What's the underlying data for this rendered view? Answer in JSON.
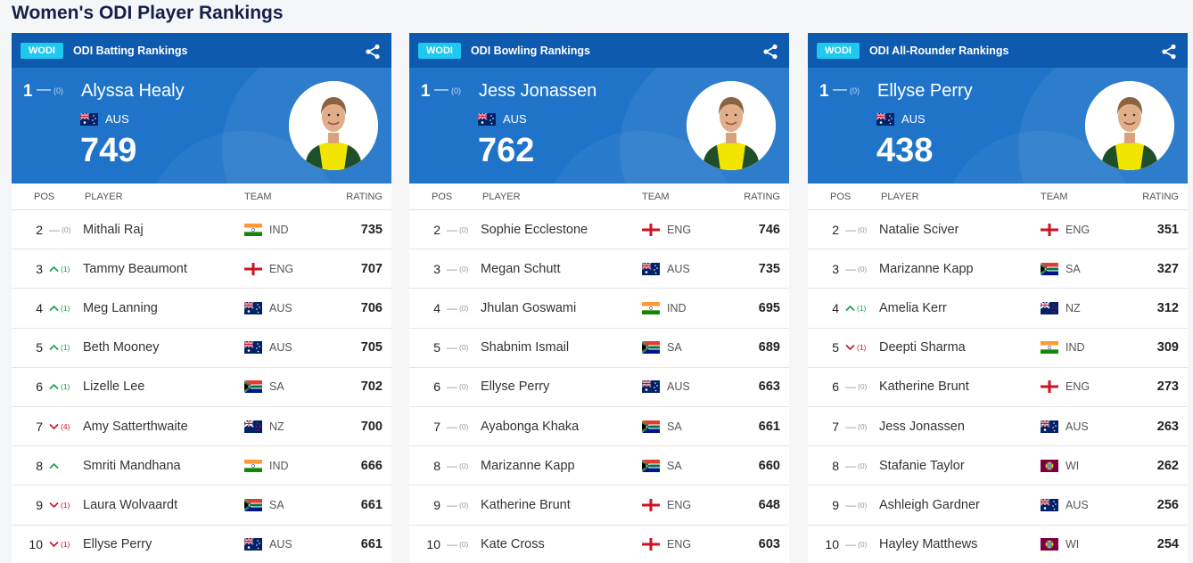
{
  "page_title": "Women's ODI Player Rankings",
  "cards": [
    {
      "badge": "WODI",
      "title": "ODI Batting Rankings",
      "leader": {
        "pos": "1",
        "change_symbol": "—",
        "change_paren": "(0)",
        "name": "Alyssa Healy",
        "team": "AUS",
        "rating": "749"
      },
      "headers": {
        "pos": "POS",
        "player": "PLAYER",
        "team": "TEAM",
        "rating": "RATING"
      },
      "rows": [
        {
          "pos": "2",
          "dir": "same",
          "paren": "(0)",
          "player": "Mithali Raj",
          "team": "IND",
          "rating": "735"
        },
        {
          "pos": "3",
          "dir": "up",
          "paren": "(1)",
          "player": "Tammy Beaumont",
          "team": "ENG",
          "rating": "707"
        },
        {
          "pos": "4",
          "dir": "up",
          "paren": "(1)",
          "player": "Meg Lanning",
          "team": "AUS",
          "rating": "706"
        },
        {
          "pos": "5",
          "dir": "up",
          "paren": "(1)",
          "player": "Beth Mooney",
          "team": "AUS",
          "rating": "705"
        },
        {
          "pos": "6",
          "dir": "up",
          "paren": "(1)",
          "player": "Lizelle Lee",
          "team": "SA",
          "rating": "702"
        },
        {
          "pos": "7",
          "dir": "down",
          "paren": "(4)",
          "player": "Amy Satterthwaite",
          "team": "NZ",
          "rating": "700"
        },
        {
          "pos": "8",
          "dir": "up",
          "paren": "",
          "player": "Smriti Mandhana",
          "team": "IND",
          "rating": "666"
        },
        {
          "pos": "9",
          "dir": "down",
          "paren": "(1)",
          "player": "Laura Wolvaardt",
          "team": "SA",
          "rating": "661"
        },
        {
          "pos": "10",
          "dir": "down",
          "paren": "(1)",
          "player": "Ellyse Perry",
          "team": "AUS",
          "rating": "661"
        }
      ]
    },
    {
      "badge": "WODI",
      "title": "ODI Bowling Rankings",
      "leader": {
        "pos": "1",
        "change_symbol": "—",
        "change_paren": "(0)",
        "name": "Jess Jonassen",
        "team": "AUS",
        "rating": "762"
      },
      "headers": {
        "pos": "POS",
        "player": "PLAYER",
        "team": "TEAM",
        "rating": "RATING"
      },
      "rows": [
        {
          "pos": "2",
          "dir": "same",
          "paren": "(0)",
          "player": "Sophie Ecclestone",
          "team": "ENG",
          "rating": "746"
        },
        {
          "pos": "3",
          "dir": "same",
          "paren": "(0)",
          "player": "Megan Schutt",
          "team": "AUS",
          "rating": "735"
        },
        {
          "pos": "4",
          "dir": "same",
          "paren": "(0)",
          "player": "Jhulan Goswami",
          "team": "IND",
          "rating": "695"
        },
        {
          "pos": "5",
          "dir": "same",
          "paren": "(0)",
          "player": "Shabnim Ismail",
          "team": "SA",
          "rating": "689"
        },
        {
          "pos": "6",
          "dir": "same",
          "paren": "(0)",
          "player": "Ellyse Perry",
          "team": "AUS",
          "rating": "663"
        },
        {
          "pos": "7",
          "dir": "same",
          "paren": "(0)",
          "player": "Ayabonga Khaka",
          "team": "SA",
          "rating": "661"
        },
        {
          "pos": "8",
          "dir": "same",
          "paren": "(0)",
          "player": "Marizanne Kapp",
          "team": "SA",
          "rating": "660"
        },
        {
          "pos": "9",
          "dir": "same",
          "paren": "(0)",
          "player": "Katherine Brunt",
          "team": "ENG",
          "rating": "648"
        },
        {
          "pos": "10",
          "dir": "same",
          "paren": "(0)",
          "player": "Kate Cross",
          "team": "ENG",
          "rating": "603"
        }
      ]
    },
    {
      "badge": "WODI",
      "title": "ODI All-Rounder Rankings",
      "leader": {
        "pos": "1",
        "change_symbol": "—",
        "change_paren": "(0)",
        "name": "Ellyse Perry",
        "team": "AUS",
        "rating": "438"
      },
      "headers": {
        "pos": "POS",
        "player": "PLAYER",
        "team": "TEAM",
        "rating": "RATING"
      },
      "rows": [
        {
          "pos": "2",
          "dir": "same",
          "paren": "(0)",
          "player": "Natalie Sciver",
          "team": "ENG",
          "rating": "351"
        },
        {
          "pos": "3",
          "dir": "same",
          "paren": "(0)",
          "player": "Marizanne Kapp",
          "team": "SA",
          "rating": "327"
        },
        {
          "pos": "4",
          "dir": "up",
          "paren": "(1)",
          "player": "Amelia Kerr",
          "team": "NZ",
          "rating": "312"
        },
        {
          "pos": "5",
          "dir": "down",
          "paren": "(1)",
          "player": "Deepti Sharma",
          "team": "IND",
          "rating": "309"
        },
        {
          "pos": "6",
          "dir": "same",
          "paren": "(0)",
          "player": "Katherine Brunt",
          "team": "ENG",
          "rating": "273"
        },
        {
          "pos": "7",
          "dir": "same",
          "paren": "(0)",
          "player": "Jess Jonassen",
          "team": "AUS",
          "rating": "263"
        },
        {
          "pos": "8",
          "dir": "same",
          "paren": "(0)",
          "player": "Stafanie Taylor",
          "team": "WI",
          "rating": "262"
        },
        {
          "pos": "9",
          "dir": "same",
          "paren": "(0)",
          "player": "Ashleigh Gardner",
          "team": "AUS",
          "rating": "256"
        },
        {
          "pos": "10",
          "dir": "same",
          "paren": "(0)",
          "player": "Hayley Matthews",
          "team": "WI",
          "rating": "254"
        }
      ]
    }
  ],
  "colors": {
    "header_blue": "#1f74c9",
    "topbar_blue": "#0e5aae",
    "badge_cyan": "#1ec8ee",
    "up_green": "#169c47",
    "down_red": "#c8102e"
  }
}
